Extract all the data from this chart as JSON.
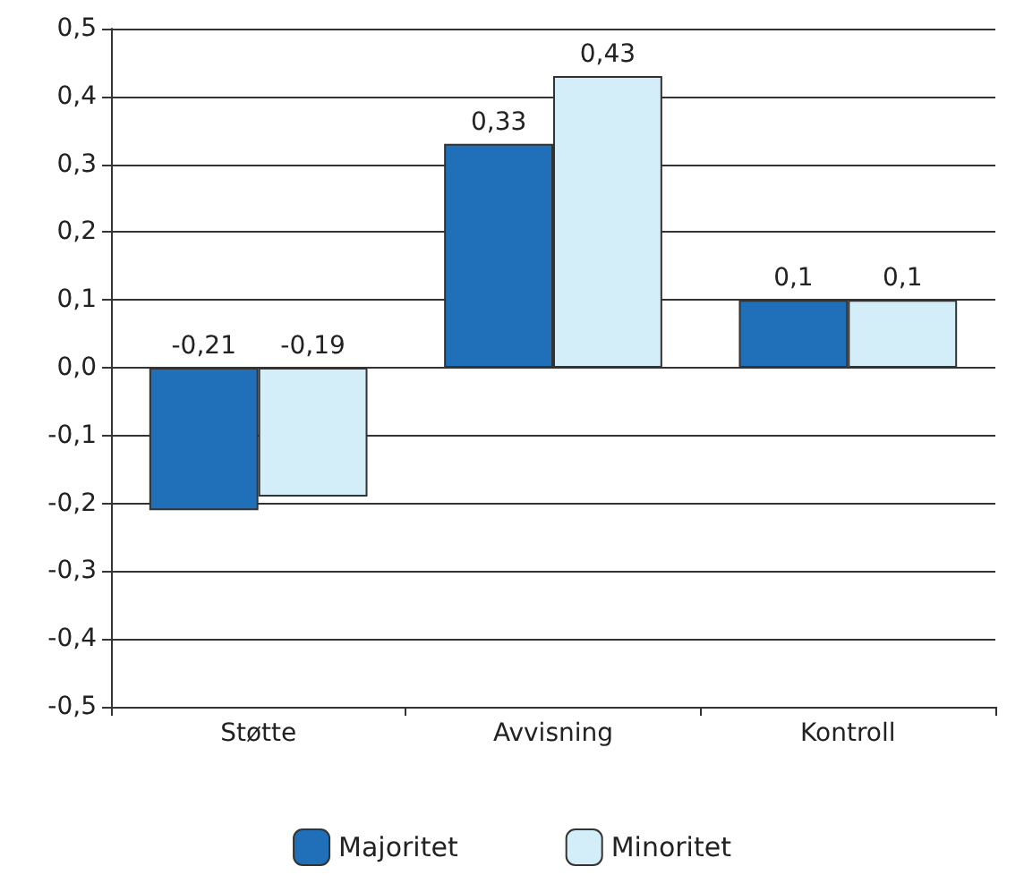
{
  "chart_data": {
    "type": "bar",
    "categories": [
      "Støtte",
      "Avvisning",
      "Kontroll"
    ],
    "series": [
      {
        "name": "Majoritet",
        "color": "#1f70b8",
        "values": [
          -0.21,
          0.33,
          0.1
        ],
        "value_labels": [
          "-0,21",
          "0,33",
          "0,1"
        ]
      },
      {
        "name": "Minoritet",
        "color": "#d3eef9",
        "values": [
          -0.19,
          0.43,
          0.1
        ],
        "value_labels": [
          "-0,19",
          "0,43",
          "0,1"
        ]
      }
    ],
    "ylim": [
      -0.5,
      0.5
    ],
    "yticks": [
      {
        "value": -0.5,
        "label": "-0,5"
      },
      {
        "value": -0.4,
        "label": "-0,4"
      },
      {
        "value": -0.3,
        "label": "-0,3"
      },
      {
        "value": -0.2,
        "label": "-0,2"
      },
      {
        "value": -0.1,
        "label": "-0,1"
      },
      {
        "value": 0,
        "label": "0,0"
      },
      {
        "value": 0.1,
        "label": "0,1"
      },
      {
        "value": 0.2,
        "label": "0,2"
      },
      {
        "value": 0.3,
        "label": "0,3"
      },
      {
        "value": 0.4,
        "label": "0,4"
      },
      {
        "value": 0.5,
        "label": "0,5"
      }
    ],
    "grid": "y",
    "legend": "bottom"
  }
}
